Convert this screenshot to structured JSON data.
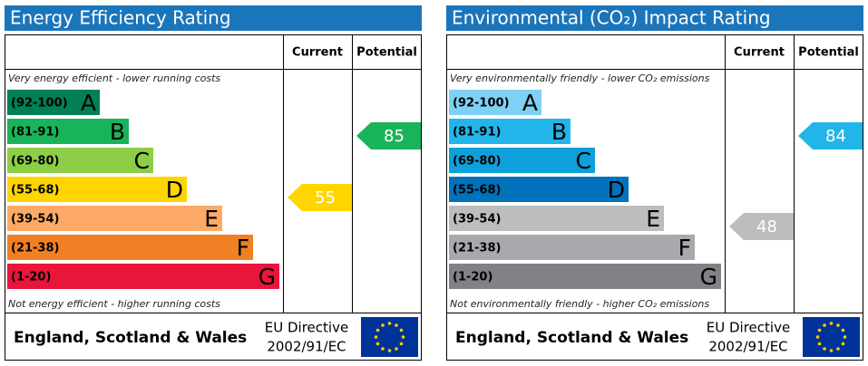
{
  "panels": [
    {
      "title": "Energy Efficiency Rating",
      "headers": [
        "Current",
        "Potential"
      ],
      "top_note": "Very energy efficient - lower running costs",
      "bottom_note": "Not energy efficient - higher running costs",
      "bands": [
        {
          "range": "(92-100)",
          "letter": "A",
          "color": "#008054"
        },
        {
          "range": "(81-91)",
          "letter": "B",
          "color": "#19b459"
        },
        {
          "range": "(69-80)",
          "letter": "C",
          "color": "#8dce46"
        },
        {
          "range": "(55-68)",
          "letter": "D",
          "color": "#ffd500"
        },
        {
          "range": "(39-54)",
          "letter": "E",
          "color": "#fcaa65"
        },
        {
          "range": "(21-38)",
          "letter": "F",
          "color": "#ef8023"
        },
        {
          "range": "(1-20)",
          "letter": "G",
          "color": "#e9153b"
        }
      ],
      "current": 55,
      "potential": 85,
      "footer": {
        "region": "England, Scotland & Wales",
        "directive": "EU Directive",
        "code": "2002/91/EC"
      }
    },
    {
      "title": "Environmental (CO₂) Impact Rating",
      "headers": [
        "Current",
        "Potential"
      ],
      "top_note": "Very environmentally friendly - lower CO₂ emissions",
      "bottom_note": "Not environmentally friendly - higher CO₂ emissions",
      "bands": [
        {
          "range": "(92-100)",
          "letter": "A",
          "color": "#7fd0f5"
        },
        {
          "range": "(81-91)",
          "letter": "B",
          "color": "#22b5e9"
        },
        {
          "range": "(69-80)",
          "letter": "C",
          "color": "#0ea0da"
        },
        {
          "range": "(55-68)",
          "letter": "D",
          "color": "#0072bb"
        },
        {
          "range": "(39-54)",
          "letter": "E",
          "color": "#bbbdbf"
        },
        {
          "range": "(21-38)",
          "letter": "F",
          "color": "#a7a9ac"
        },
        {
          "range": "(1-20)",
          "letter": "G",
          "color": "#808285"
        }
      ],
      "current": 48,
      "potential": 84,
      "footer": {
        "region": "England, Scotland & Wales",
        "directive": "EU Directive",
        "code": "2002/91/EC"
      }
    }
  ]
}
